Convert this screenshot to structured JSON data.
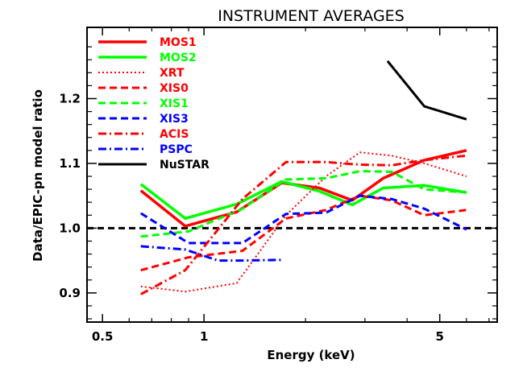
{
  "chart_data": {
    "type": "line",
    "title": "INSTRUMENT AVERAGES",
    "xlabel": "Energy (keV)",
    "ylabel": "Data/EPIC-pn model ratio",
    "x_scale": "log",
    "xlim": [
      0.45,
      7.4
    ],
    "ylim": [
      0.855,
      1.31
    ],
    "x_ticks": [
      {
        "value": 0.5,
        "label": "0.5"
      },
      {
        "value": 1,
        "label": "1"
      },
      {
        "value": 5,
        "label": "5"
      }
    ],
    "y_ticks": [
      {
        "value": 0.9,
        "label": "0.9"
      },
      {
        "value": 1.0,
        "label": "1.0"
      },
      {
        "value": 1.1,
        "label": "1.1"
      },
      {
        "value": 1.2,
        "label": "1.2"
      }
    ],
    "reference_line": {
      "y": 1.0,
      "color": "#000000",
      "style": "dashed"
    },
    "legend_position": "top-left",
    "series": [
      {
        "name": "MOS1",
        "color": "#ff0000",
        "style": "solid",
        "width": 3.5,
        "x": [
          0.65,
          0.88,
          1.25,
          1.7,
          2.2,
          2.75,
          3.4,
          4.5,
          6.0
        ],
        "y": [
          1.058,
          1.003,
          1.025,
          1.07,
          1.062,
          1.043,
          1.077,
          1.105,
          1.12
        ]
      },
      {
        "name": "MOS2",
        "color": "#00ff00",
        "style": "solid",
        "width": 3.5,
        "x": [
          0.65,
          0.88,
          1.25,
          1.7,
          2.2,
          2.75,
          3.4,
          4.5,
          6.0
        ],
        "y": [
          1.068,
          1.015,
          1.037,
          1.072,
          1.057,
          1.036,
          1.062,
          1.066,
          1.055
        ]
      },
      {
        "name": "XRT",
        "color": "#ff0000",
        "style": "dotted",
        "width": 2,
        "x": [
          0.65,
          0.88,
          1.25,
          1.75,
          2.3,
          2.9,
          3.6,
          4.5,
          6.0
        ],
        "y": [
          0.91,
          0.902,
          0.915,
          1.02,
          1.08,
          1.117,
          1.112,
          1.1,
          1.08
        ]
      },
      {
        "name": "XIS0",
        "color": "#ff0000",
        "style": "dashed",
        "width": 3,
        "x": [
          0.65,
          0.9,
          1.3,
          1.75,
          2.3,
          2.9,
          3.6,
          4.5,
          6.0
        ],
        "y": [
          0.935,
          0.955,
          0.965,
          1.015,
          1.028,
          1.05,
          1.043,
          1.02,
          1.028
        ]
      },
      {
        "name": "XIS1",
        "color": "#00ff00",
        "style": "dashed",
        "width": 3,
        "x": [
          0.65,
          0.9,
          1.3,
          1.75,
          2.3,
          2.9,
          3.6,
          4.5,
          6.0
        ],
        "y": [
          0.987,
          0.995,
          1.03,
          1.075,
          1.077,
          1.088,
          1.087,
          1.06,
          1.055
        ]
      },
      {
        "name": "XIS3",
        "color": "#0000ff",
        "style": "dashed",
        "width": 3,
        "x": [
          0.65,
          0.9,
          1.3,
          1.75,
          2.3,
          2.9,
          3.6,
          4.5,
          6.0
        ],
        "y": [
          1.023,
          0.977,
          0.977,
          1.022,
          1.024,
          1.05,
          1.045,
          1.03,
          0.998
        ]
      },
      {
        "name": "ACIS",
        "color": "#ff0000",
        "style": "dashdot",
        "width": 3,
        "x": [
          0.65,
          0.88,
          1.3,
          1.75,
          2.3,
          2.9,
          3.6,
          4.5,
          6.0
        ],
        "y": [
          0.898,
          0.935,
          1.045,
          1.102,
          1.102,
          1.098,
          1.097,
          1.105,
          1.112
        ]
      },
      {
        "name": "PSPC",
        "color": "#0000ff",
        "style": "dashdot",
        "width": 3,
        "x": [
          0.65,
          0.88,
          1.1,
          1.3,
          1.7
        ],
        "y": [
          0.972,
          0.967,
          0.95,
          0.95,
          0.951
        ]
      },
      {
        "name": "NuSTAR",
        "color": "#000000",
        "style": "solid",
        "width": 3,
        "x": [
          3.5,
          4.5,
          6.0
        ],
        "y": [
          1.258,
          1.188,
          1.168
        ]
      }
    ]
  }
}
